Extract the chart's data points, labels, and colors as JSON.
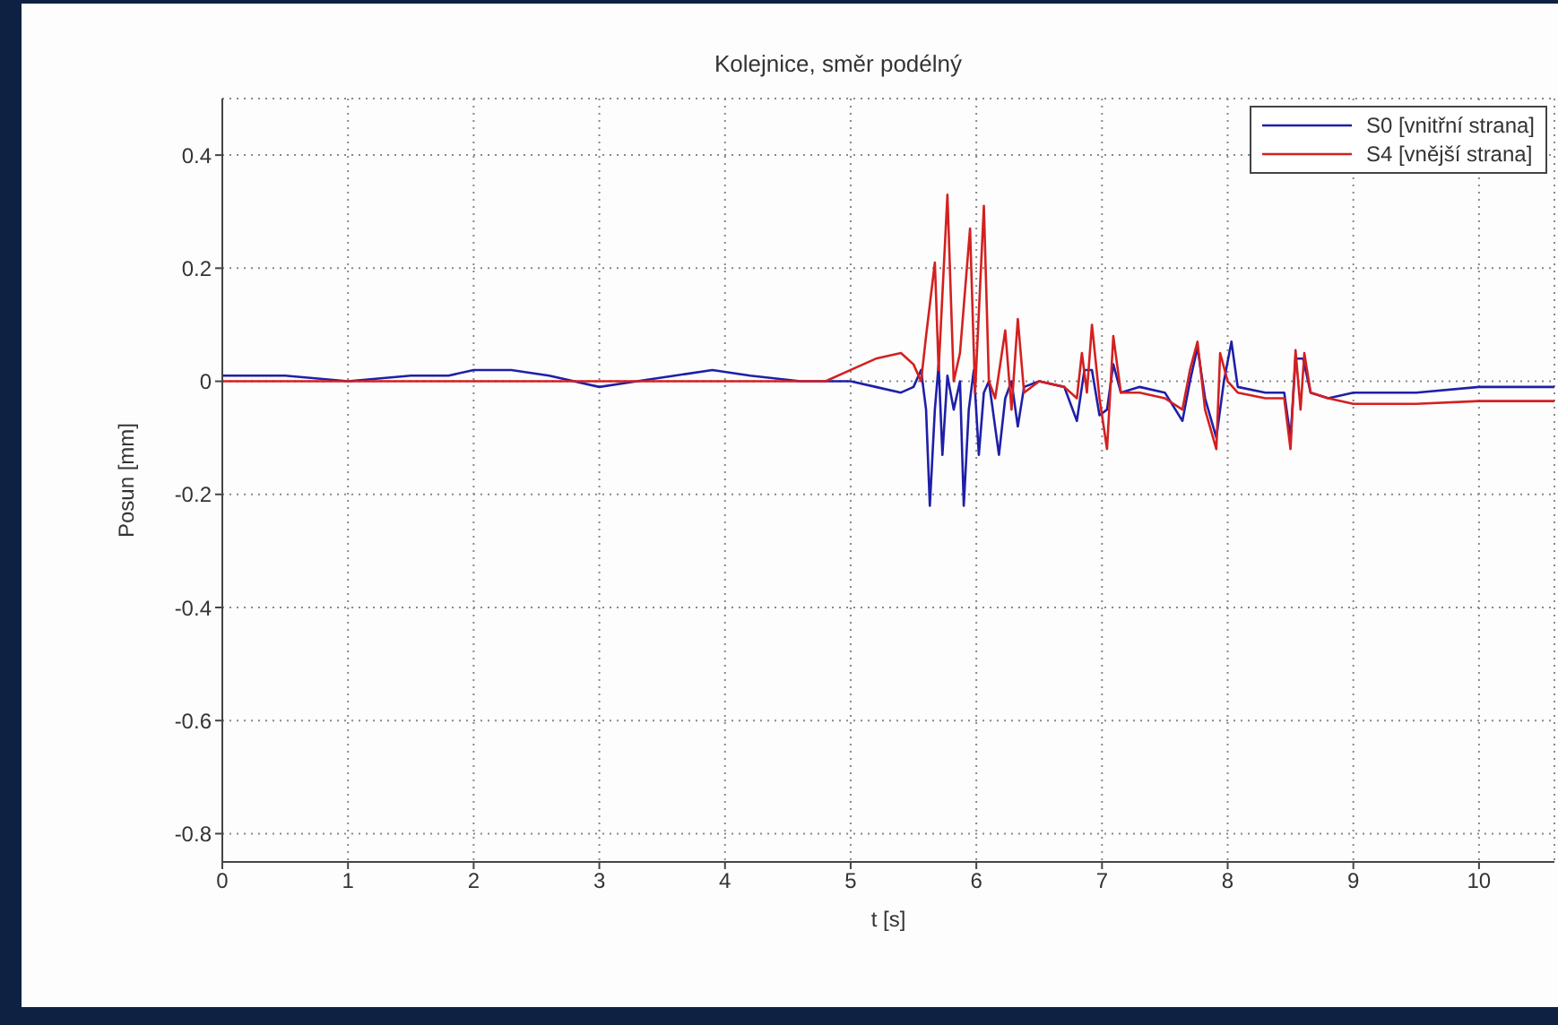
{
  "chart_data": {
    "type": "line",
    "title": "Kolejnice, směr podélný",
    "xlabel": "t [s]",
    "ylabel": "Posun [mm]",
    "xlim": [
      0,
      10.6
    ],
    "xticks": [
      0,
      1,
      2,
      3,
      4,
      5,
      6,
      7,
      8,
      9,
      10
    ],
    "ylim": [
      -0.85,
      0.5
    ],
    "yticks": [
      -0.8,
      -0.6,
      -0.4,
      -0.2,
      0,
      0.2,
      0.4
    ],
    "grid": true,
    "legend": "top right",
    "line_style": "solid",
    "series": [
      {
        "name": "S0 [vnitřní strana]",
        "color": "#1f1fa8",
        "x": [
          0,
          0.5,
          1,
          1.5,
          1.8,
          2,
          2.3,
          2.6,
          3,
          3.3,
          3.6,
          3.9,
          4.2,
          4.6,
          5,
          5.2,
          5.4,
          5.5,
          5.56,
          5.6,
          5.63,
          5.67,
          5.7,
          5.73,
          5.77,
          5.82,
          5.87,
          5.9,
          5.94,
          5.98,
          6.02,
          6.06,
          6.1,
          6.18,
          6.23,
          6.28,
          6.33,
          6.38,
          6.5,
          6.7,
          6.8,
          6.86,
          6.92,
          6.98,
          7.04,
          7.09,
          7.15,
          7.3,
          7.5,
          7.64,
          7.7,
          7.76,
          7.82,
          7.91,
          7.97,
          8.03,
          8.08,
          8.3,
          8.45,
          8.5,
          8.54,
          8.6,
          8.66,
          8.8,
          9,
          9.5,
          10,
          10.6
        ],
        "values": [
          0.01,
          0.01,
          0.0,
          0.01,
          0.01,
          0.02,
          0.02,
          0.01,
          -0.01,
          0.0,
          0.01,
          0.02,
          0.01,
          0.0,
          0.0,
          -0.01,
          -0.02,
          -0.01,
          0.02,
          -0.05,
          -0.22,
          -0.05,
          0.03,
          -0.13,
          0.01,
          -0.05,
          0.0,
          -0.22,
          -0.05,
          0.02,
          -0.13,
          -0.02,
          0.0,
          -0.13,
          -0.03,
          0.0,
          -0.08,
          -0.01,
          0.0,
          -0.01,
          -0.07,
          0.02,
          0.02,
          -0.06,
          -0.05,
          0.03,
          -0.02,
          -0.01,
          -0.02,
          -0.07,
          0.0,
          0.06,
          -0.03,
          -0.1,
          0.0,
          0.07,
          -0.01,
          -0.02,
          -0.02,
          -0.1,
          0.04,
          0.04,
          -0.02,
          -0.03,
          -0.02,
          -0.02,
          -0.01,
          -0.01
        ]
      },
      {
        "name": "S4 [vnější strana]",
        "color": "#d42020",
        "x": [
          0,
          1,
          2,
          3,
          4,
          4.8,
          5,
          5.2,
          5.4,
          5.5,
          5.56,
          5.6,
          5.67,
          5.7,
          5.77,
          5.82,
          5.87,
          5.95,
          5.99,
          6.06,
          6.1,
          6.15,
          6.23,
          6.28,
          6.33,
          6.38,
          6.5,
          6.7,
          6.8,
          6.84,
          6.88,
          6.92,
          6.98,
          7.04,
          7.09,
          7.15,
          7.3,
          7.5,
          7.64,
          7.7,
          7.76,
          7.82,
          7.91,
          7.94,
          8.0,
          8.08,
          8.3,
          8.45,
          8.5,
          8.54,
          8.58,
          8.61,
          8.66,
          8.8,
          9,
          9.5,
          10,
          10.6
        ],
        "values": [
          0.0,
          0.0,
          0.0,
          0.0,
          0.0,
          0.0,
          0.02,
          0.04,
          0.05,
          0.03,
          0.0,
          0.08,
          0.21,
          0.02,
          0.33,
          0.0,
          0.05,
          0.27,
          -0.02,
          0.31,
          0.0,
          -0.03,
          0.09,
          -0.05,
          0.11,
          -0.02,
          0.0,
          -0.01,
          -0.03,
          0.05,
          -0.02,
          0.1,
          -0.03,
          -0.12,
          0.08,
          -0.02,
          -0.02,
          -0.03,
          -0.05,
          0.02,
          0.07,
          -0.05,
          -0.12,
          0.05,
          0.0,
          -0.02,
          -0.03,
          -0.03,
          -0.12,
          0.055,
          -0.05,
          0.05,
          -0.02,
          -0.03,
          -0.04,
          -0.04,
          -0.035,
          -0.035
        ]
      }
    ]
  }
}
